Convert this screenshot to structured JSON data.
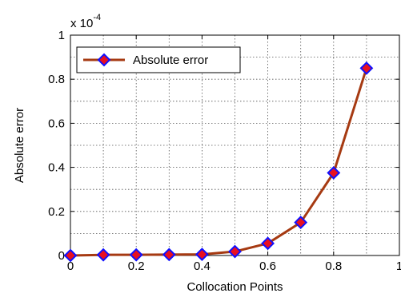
{
  "chart_data": {
    "type": "line",
    "title": "",
    "xlabel": "Collocation Points",
    "ylabel": "Absolute error",
    "y_multiplier_label": {
      "base": "x 10",
      "exponent": "-4"
    },
    "xlim": [
      0,
      1
    ],
    "ylim": [
      0,
      1
    ],
    "x_ticks": [
      "0",
      "0.2",
      "0.4",
      "0.6",
      "0.8",
      "1"
    ],
    "y_ticks": [
      "0",
      "0.2",
      "0.4",
      "0.6",
      "0.8",
      "1"
    ],
    "x_tick_values": [
      0,
      0.2,
      0.4,
      0.6,
      0.8,
      1
    ],
    "y_tick_values": [
      0,
      0.2,
      0.4,
      0.6,
      0.8,
      1
    ],
    "grid": true,
    "grid_step": 0.1,
    "legend_position": "top-left",
    "series": [
      {
        "name": "Absolute error",
        "line_color": "#a63a12",
        "marker": "diamond",
        "marker_edge_color": "#1010ff",
        "marker_face_color": "#e81020",
        "x": [
          0,
          0.1,
          0.2,
          0.3,
          0.4,
          0.5,
          0.6,
          0.7,
          0.8,
          0.9
        ],
        "y": [
          0.0,
          0.003,
          0.003,
          0.004,
          0.005,
          0.018,
          0.055,
          0.15,
          0.375,
          0.85
        ]
      }
    ]
  }
}
